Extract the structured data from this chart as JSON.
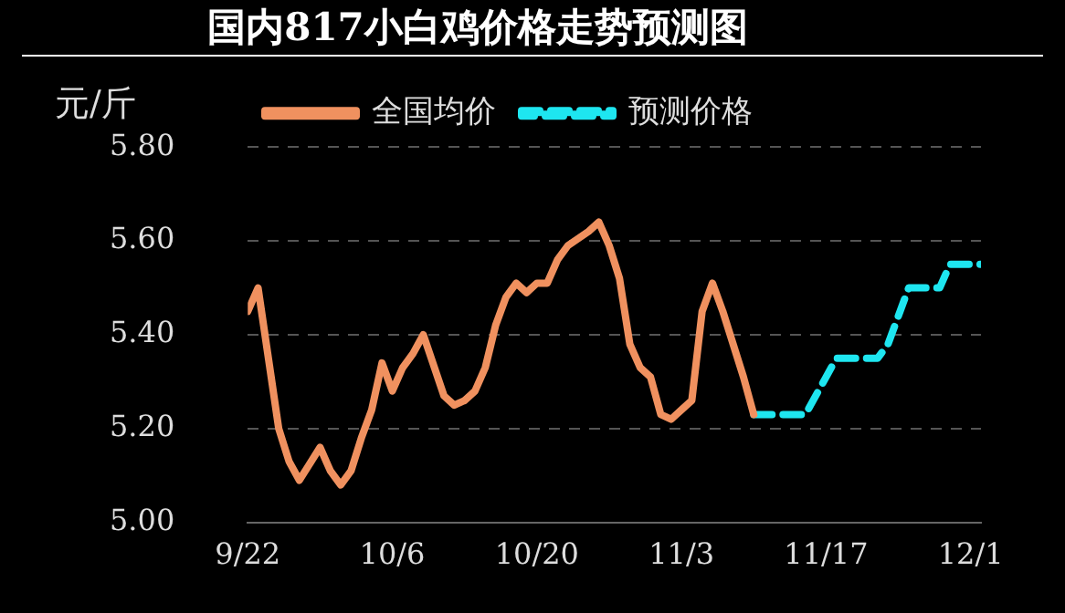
{
  "chart_data": {
    "type": "line",
    "title": "国内817小白鸡价格走势预测图",
    "ylabel": "元/斤",
    "series": [
      {
        "name": "全国均价",
        "color": "#f0915f",
        "line_style": "solid",
        "x": [
          "--09-22",
          "--09-23",
          "--09-25",
          "--09-26",
          "--09-27",
          "--09-29",
          "--09-30",
          "--10-01",
          "--10-02",
          "--10-03",
          "--10-04",
          "--10-05",
          "--10-06",
          "--10-07",
          "--10-08",
          "--10-09",
          "--10-11",
          "--10-12",
          "--10-13",
          "--10-14",
          "--10-15",
          "--10-16",
          "--10-17",
          "--10-18",
          "--10-19",
          "--10-20",
          "--10-21",
          "--10-22",
          "--10-23",
          "--10-25",
          "--10-26",
          "--10-27",
          "--10-28",
          "--10-29",
          "--10-30",
          "--10-31",
          "--11-01",
          "--11-02",
          "--11-03",
          "--11-04",
          "--11-05",
          "--11-06",
          "--11-07",
          "--11-09",
          "--11-10"
        ],
        "values": [
          5.45,
          5.5,
          5.2,
          5.13,
          5.09,
          5.16,
          5.11,
          5.08,
          5.11,
          5.18,
          5.24,
          5.34,
          5.28,
          5.33,
          5.36,
          5.4,
          5.27,
          5.25,
          5.26,
          5.28,
          5.33,
          5.42,
          5.48,
          5.51,
          5.49,
          5.51,
          5.51,
          5.56,
          5.59,
          5.62,
          5.64,
          5.59,
          5.52,
          5.38,
          5.33,
          5.31,
          5.23,
          5.22,
          5.24,
          5.26,
          5.45,
          5.51,
          5.45,
          5.31,
          5.23
        ]
      },
      {
        "name": "预测价格",
        "color": "#1ee6f0",
        "line_style": "dashed",
        "x": [
          "--11-10",
          "--11-15",
          "--11-17",
          "--11-18",
          "--11-22",
          "--11-23",
          "--11-25",
          "--11-28",
          "--11-29",
          "--12-02"
        ],
        "values": [
          5.23,
          5.23,
          5.31,
          5.35,
          5.35,
          5.38,
          5.5,
          5.5,
          5.55,
          5.55
        ]
      }
    ],
    "xlim": [
      "--09-22",
      "--12-02"
    ],
    "xticks": [
      {
        "value": "--09-22",
        "label": "9/22"
      },
      {
        "value": "--10-06",
        "label": "10/6"
      },
      {
        "value": "--10-20",
        "label": "10/20"
      },
      {
        "value": "--11-03",
        "label": "11/3"
      },
      {
        "value": "--11-17",
        "label": "11/17"
      },
      {
        "value": "--12-01",
        "label": "12/1"
      }
    ],
    "ylim": [
      5,
      5.8
    ],
    "yticks": [
      {
        "value": 5,
        "label": "5.00"
      },
      {
        "value": 5.2,
        "label": "5.20"
      },
      {
        "value": 5.4,
        "label": "5.40"
      },
      {
        "value": 5.6,
        "label": "5.60"
      },
      {
        "value": 5.8,
        "label": "5.80"
      }
    ],
    "grid": "y",
    "legend": "top",
    "marker": "none"
  }
}
